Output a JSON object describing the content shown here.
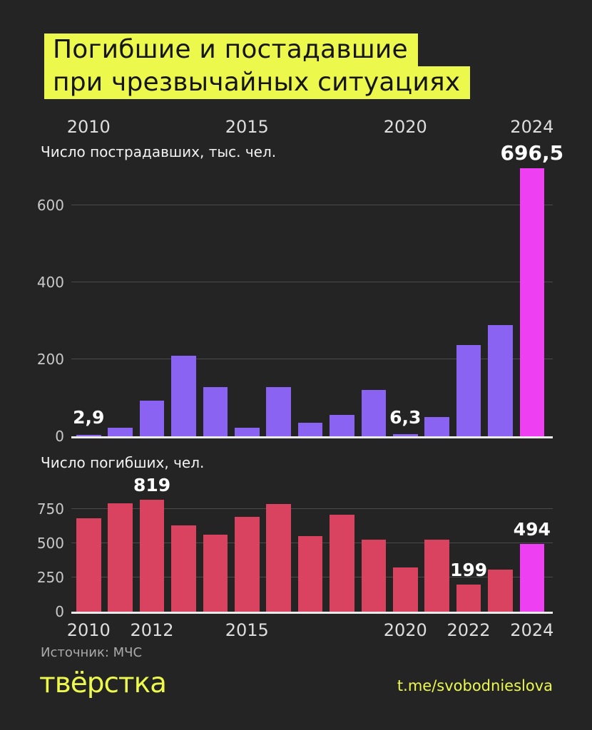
{
  "colors": {
    "background": "#242424",
    "yellow": "#ecf84b",
    "purple": "#8a63f3",
    "red": "#d9435f",
    "magenta": "#ee3ff2",
    "grid": "#4a4a4a",
    "baseline": "#ebebeb"
  },
  "title": {
    "line1": "Погибшие и постадавшие",
    "line2": "при чрезвычайных ситуациях"
  },
  "chart_data": [
    {
      "type": "bar",
      "title": "Число пострадавших, тыс. чел.",
      "categories": [
        "2010",
        "2011",
        "2012",
        "2013",
        "2014",
        "2015",
        "2016",
        "2017",
        "2018",
        "2019",
        "2020",
        "2021",
        "2022",
        "2023",
        "2024"
      ],
      "values": [
        2.9,
        23,
        93,
        210,
        128,
        22,
        128,
        35,
        55,
        120,
        6.3,
        50,
        237,
        289,
        696.5
      ],
      "ylim": [
        0,
        700
      ],
      "yticks": [
        0,
        200,
        400,
        600
      ],
      "grid": true,
      "legend": false,
      "axis_position": "top",
      "axis_ticks": [
        {
          "index": 0,
          "label": "2010"
        },
        {
          "index": 5,
          "label": "2015"
        },
        {
          "index": 10,
          "label": "2020"
        },
        {
          "index": 14,
          "label": "2024"
        }
      ],
      "value_labels": [
        {
          "index": 0,
          "text": "2,9"
        },
        {
          "index": 10,
          "text": "6,3"
        },
        {
          "index": 14,
          "text": "696,5",
          "emphasis": true
        }
      ],
      "bar_color_key": "purple",
      "highlight_index": 14,
      "highlight_color_key": "magenta"
    },
    {
      "type": "bar",
      "title": "Число погибших, чел.",
      "categories": [
        "2010",
        "2011",
        "2012",
        "2013",
        "2014",
        "2015",
        "2016",
        "2017",
        "2018",
        "2019",
        "2020",
        "2021",
        "2022",
        "2023",
        "2024"
      ],
      "values": [
        685,
        790,
        819,
        630,
        565,
        695,
        785,
        550,
        710,
        525,
        325,
        525,
        199,
        305,
        494
      ],
      "ylim": [
        0,
        860
      ],
      "yticks": [
        0,
        250,
        500,
        750
      ],
      "grid": true,
      "legend": false,
      "axis_position": "bottom",
      "axis_ticks": [
        {
          "index": 0,
          "label": "2010"
        },
        {
          "index": 2,
          "label": "2012"
        },
        {
          "index": 5,
          "label": "2015"
        },
        {
          "index": 10,
          "label": "2020"
        },
        {
          "index": 12,
          "label": "2022"
        },
        {
          "index": 14,
          "label": "2024"
        }
      ],
      "value_labels": [
        {
          "index": 2,
          "text": "819"
        },
        {
          "index": 12,
          "text": "199"
        },
        {
          "index": 14,
          "text": "494"
        }
      ],
      "bar_color_key": "red",
      "highlight_index": 14,
      "highlight_color_key": "magenta"
    }
  ],
  "footer": {
    "source": "Источник: МЧС",
    "logo": "твёрстка",
    "link": "t.me/svobodnieslova"
  }
}
